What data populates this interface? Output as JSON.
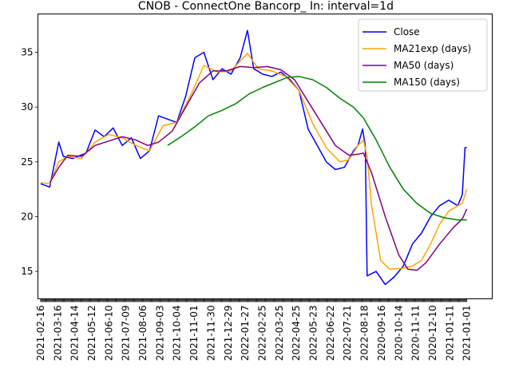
{
  "chart_data": {
    "type": "line",
    "title": "CNOB - ConnectOne Bancorp_ In: interval=1d",
    "xlabel": "",
    "ylabel": "",
    "ylim": [
      12.5,
      38.5
    ],
    "yticks": [
      15,
      20,
      25,
      30,
      35
    ],
    "grid": false,
    "legend_position": "top-right",
    "x_tick_labels": [
      "2021-02-16",
      "2021-03-16",
      "2021-04-14",
      "2021-05-12",
      "2021-06-10",
      "2021-07-09",
      "2021-08-06",
      "2021-09-03",
      "2021-10-04",
      "2021-11-01",
      "2021-11-30",
      "2021-12-29",
      "2022-01-27",
      "2022-02-25",
      "2022-03-25",
      "2022-04-25",
      "2022-05-23",
      "2022-06-22",
      "2022-07-21",
      "2022-08-18",
      "2020-09-16",
      "2020-10-14",
      "2020-11-11",
      "2020-12-10",
      "2021-01-11",
      "2021-01-01"
    ],
    "x_range": [
      -3,
      498
    ],
    "series": [
      {
        "name": "Close",
        "color": "#0000ff",
        "points": [
          [
            0,
            23.0
          ],
          [
            10,
            22.7
          ],
          [
            20,
            26.8
          ],
          [
            25,
            25.5
          ],
          [
            35,
            25.3
          ],
          [
            50,
            25.8
          ],
          [
            60,
            27.9
          ],
          [
            70,
            27.3
          ],
          [
            80,
            28.1
          ],
          [
            90,
            26.5
          ],
          [
            100,
            27.2
          ],
          [
            110,
            25.3
          ],
          [
            120,
            26.0
          ],
          [
            130,
            29.2
          ],
          [
            140,
            28.9
          ],
          [
            150,
            28.6
          ],
          [
            160,
            31.0
          ],
          [
            170,
            34.5
          ],
          [
            180,
            35.0
          ],
          [
            190,
            32.5
          ],
          [
            200,
            33.5
          ],
          [
            210,
            33.0
          ],
          [
            220,
            34.5
          ],
          [
            228,
            37.0
          ],
          [
            235,
            33.5
          ],
          [
            245,
            33.0
          ],
          [
            255,
            32.8
          ],
          [
            265,
            33.2
          ],
          [
            275,
            32.5
          ],
          [
            285,
            31.5
          ],
          [
            295,
            28.0
          ],
          [
            305,
            26.5
          ],
          [
            315,
            25.0
          ],
          [
            325,
            24.3
          ],
          [
            335,
            24.5
          ],
          [
            345,
            26.0
          ],
          [
            350,
            26.5
          ],
          [
            355,
            28.0
          ],
          [
            358,
            26.5
          ],
          [
            360,
            14.6
          ],
          [
            370,
            15.0
          ],
          [
            380,
            13.8
          ],
          [
            390,
            14.5
          ],
          [
            400,
            15.5
          ],
          [
            410,
            17.5
          ],
          [
            420,
            18.5
          ],
          [
            430,
            20.0
          ],
          [
            440,
            21.0
          ],
          [
            450,
            21.5
          ],
          [
            460,
            21.0
          ],
          [
            465,
            22.0
          ],
          [
            468,
            26.3
          ],
          [
            470,
            26.3
          ]
        ]
      },
      {
        "name": "MA21exp (days)",
        "color": "#ffa500",
        "points": [
          [
            0,
            23.1
          ],
          [
            10,
            23.0
          ],
          [
            20,
            25.0
          ],
          [
            30,
            25.5
          ],
          [
            45,
            25.3
          ],
          [
            60,
            26.8
          ],
          [
            75,
            27.5
          ],
          [
            90,
            27.2
          ],
          [
            105,
            26.5
          ],
          [
            120,
            26.0
          ],
          [
            135,
            28.3
          ],
          [
            150,
            28.6
          ],
          [
            165,
            31.0
          ],
          [
            180,
            33.8
          ],
          [
            195,
            33.2
          ],
          [
            210,
            33.3
          ],
          [
            220,
            34.2
          ],
          [
            228,
            34.9
          ],
          [
            240,
            33.5
          ],
          [
            255,
            33.3
          ],
          [
            270,
            32.8
          ],
          [
            285,
            31.5
          ],
          [
            300,
            28.5
          ],
          [
            315,
            26.3
          ],
          [
            330,
            25.0
          ],
          [
            340,
            25.2
          ],
          [
            350,
            26.5
          ],
          [
            356,
            27.0
          ],
          [
            360,
            25.5
          ],
          [
            365,
            21.0
          ],
          [
            375,
            16.0
          ],
          [
            385,
            15.2
          ],
          [
            400,
            15.3
          ],
          [
            410,
            15.5
          ],
          [
            420,
            16.0
          ],
          [
            430,
            17.5
          ],
          [
            440,
            19.3
          ],
          [
            450,
            20.5
          ],
          [
            460,
            21.0
          ],
          [
            465,
            21.2
          ],
          [
            470,
            22.5
          ]
        ]
      },
      {
        "name": "MA50 (days)",
        "color": "#800080",
        "points": [
          [
            10,
            23.1
          ],
          [
            20,
            24.5
          ],
          [
            30,
            25.6
          ],
          [
            45,
            25.5
          ],
          [
            60,
            26.5
          ],
          [
            75,
            26.9
          ],
          [
            90,
            27.3
          ],
          [
            105,
            27.0
          ],
          [
            118,
            26.5
          ],
          [
            130,
            26.8
          ],
          [
            145,
            27.8
          ],
          [
            160,
            30.0
          ],
          [
            175,
            32.2
          ],
          [
            190,
            33.3
          ],
          [
            205,
            33.3
          ],
          [
            220,
            33.7
          ],
          [
            235,
            33.6
          ],
          [
            250,
            33.7
          ],
          [
            265,
            33.4
          ],
          [
            280,
            32.5
          ],
          [
            295,
            30.5
          ],
          [
            310,
            28.5
          ],
          [
            325,
            26.5
          ],
          [
            340,
            25.6
          ],
          [
            350,
            25.7
          ],
          [
            356,
            25.8
          ],
          [
            365,
            24.0
          ],
          [
            380,
            20.0
          ],
          [
            395,
            16.5
          ],
          [
            405,
            15.2
          ],
          [
            415,
            15.1
          ],
          [
            425,
            15.8
          ],
          [
            440,
            17.5
          ],
          [
            455,
            19.0
          ],
          [
            465,
            19.8
          ],
          [
            470,
            20.7
          ]
        ]
      },
      {
        "name": "MA150 (days)",
        "color": "#008000",
        "points": [
          [
            140,
            26.5
          ],
          [
            155,
            27.3
          ],
          [
            170,
            28.2
          ],
          [
            185,
            29.2
          ],
          [
            200,
            29.7
          ],
          [
            215,
            30.3
          ],
          [
            230,
            31.2
          ],
          [
            245,
            31.8
          ],
          [
            260,
            32.3
          ],
          [
            272,
            32.7
          ],
          [
            285,
            32.8
          ],
          [
            300,
            32.5
          ],
          [
            315,
            31.8
          ],
          [
            330,
            30.8
          ],
          [
            345,
            30.0
          ],
          [
            356,
            29.0
          ],
          [
            370,
            27.0
          ],
          [
            385,
            24.5
          ],
          [
            400,
            22.5
          ],
          [
            415,
            21.2
          ],
          [
            430,
            20.3
          ],
          [
            445,
            19.9
          ],
          [
            460,
            19.7
          ],
          [
            470,
            19.7
          ]
        ]
      }
    ]
  }
}
